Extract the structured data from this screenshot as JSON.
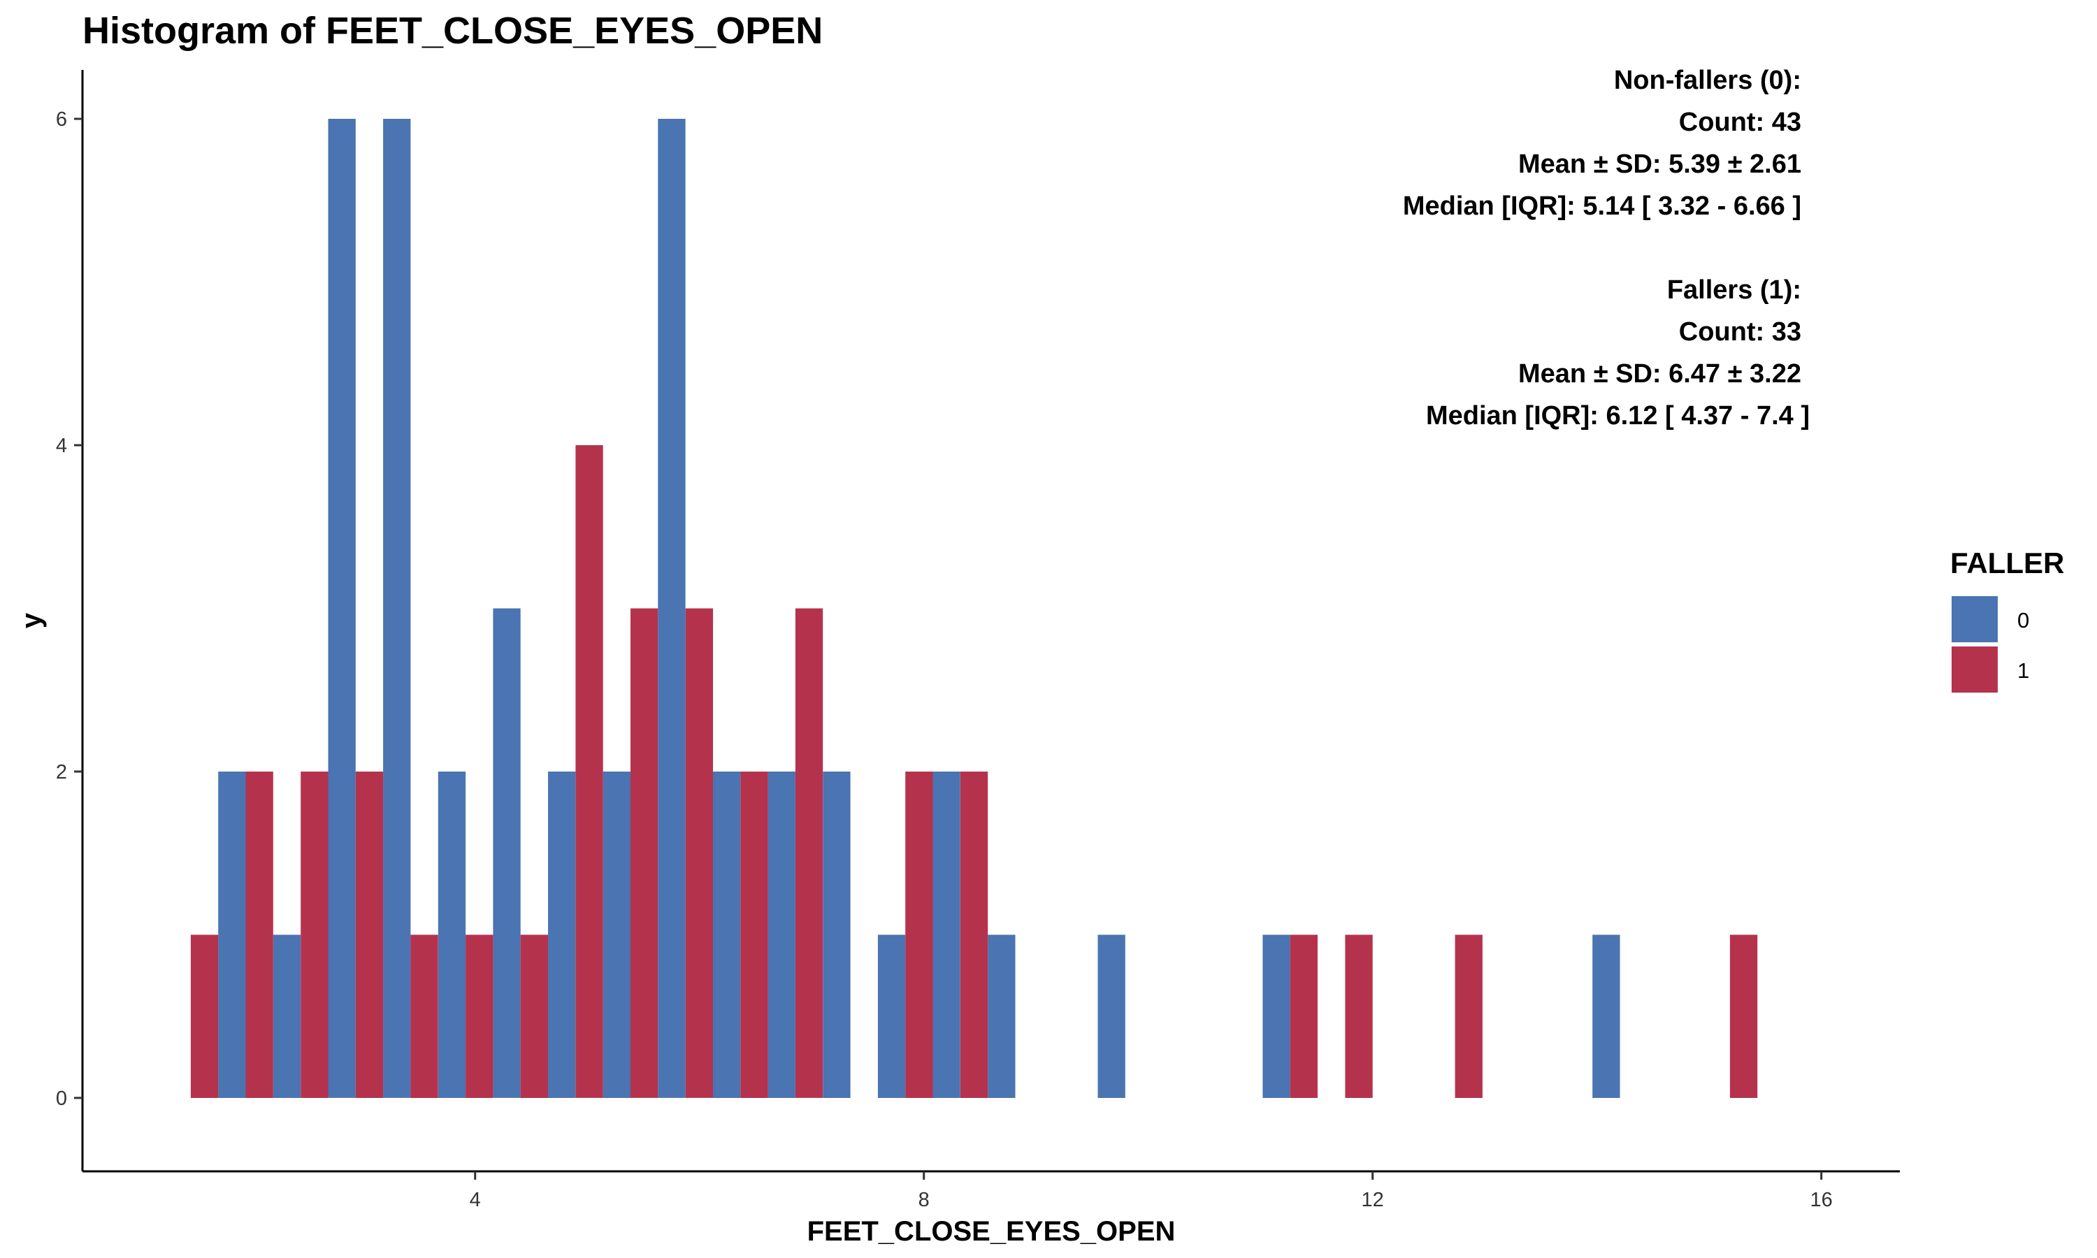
{
  "chart_data": {
    "type": "bar",
    "title": "Histogram of FEET_CLOSE_EYES_OPEN",
    "xlabel": "FEET_CLOSE_EYES_OPEN",
    "ylabel": "y",
    "xlim": [
      0.5,
      16.7
    ],
    "ylim": [
      -0.45,
      6.3
    ],
    "x_ticks": [
      4,
      8,
      12,
      16
    ],
    "y_ticks": [
      0,
      2,
      4,
      6
    ],
    "grid": false,
    "bin_width": 0.49,
    "bin_centers": [
      1.71,
      2.2,
      2.69,
      3.18,
      3.67,
      4.16,
      4.65,
      5.14,
      5.63,
      6.12,
      6.61,
      7.1,
      7.59,
      8.08,
      8.57,
      9.06,
      9.55,
      10.04,
      10.53,
      11.02,
      11.51,
      12.0,
      12.49,
      12.98,
      13.47,
      13.96,
      14.45,
      14.94,
      15.43,
      15.92
    ],
    "legend": {
      "title": "FALLER",
      "position": "right",
      "items": [
        {
          "label": "0",
          "color": "#4A74B2"
        },
        {
          "label": "1",
          "color": "#B5324D"
        }
      ]
    },
    "series": [
      {
        "name": "0",
        "color": "#4A74B2",
        "values": [
          2,
          1,
          6,
          6,
          2,
          3,
          2,
          2,
          6,
          2,
          2,
          2,
          1,
          2,
          1,
          0,
          1,
          0,
          0,
          1,
          0,
          0,
          0,
          0,
          0,
          1,
          0,
          0,
          0,
          0
        ]
      },
      {
        "name": "1",
        "color": "#B5324D",
        "values": [
          1,
          2,
          2,
          2,
          1,
          1,
          1,
          4,
          3,
          3,
          2,
          3,
          0,
          2,
          2,
          0,
          0,
          0,
          0,
          0,
          1,
          1,
          0,
          1,
          0,
          0,
          0,
          0,
          1,
          0
        ]
      }
    ],
    "annotations": {
      "non_fallers": [
        "Non-fallers (0):",
        "Count: 43",
        "Mean ± SD: 5.39 ± 2.61",
        "Median [IQR]: 5.14 [ 3.32 - 6.66 ]"
      ],
      "fallers": [
        "Fallers (1):",
        "Count: 33",
        "Mean ± SD: 6.47 ± 3.22",
        "Median [IQR]: 6.12 [ 4.37 - 7.4 ]"
      ]
    }
  }
}
